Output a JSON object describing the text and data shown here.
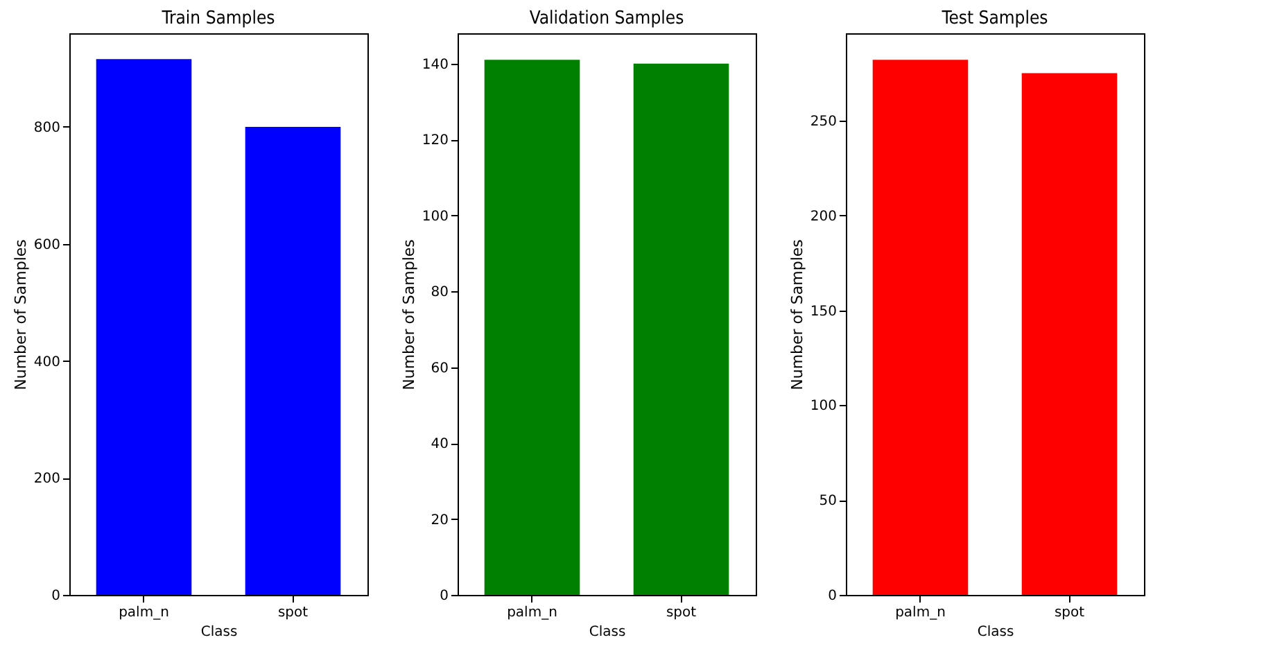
{
  "chart_data": [
    {
      "type": "bar",
      "title": "Train Samples",
      "xlabel": "Class",
      "ylabel": "Number of Samples",
      "categories": [
        "palm_n",
        "spot"
      ],
      "values": [
        916,
        800
      ],
      "color": "#0000ff",
      "ylim": [
        0,
        960
      ],
      "yticks": [
        0,
        200,
        400,
        600,
        800
      ]
    },
    {
      "type": "bar",
      "title": "Validation Samples",
      "xlabel": "Class",
      "ylabel": "Number of Samples",
      "categories": [
        "palm_n",
        "spot"
      ],
      "values": [
        141,
        140
      ],
      "color": "#008000",
      "ylim": [
        0,
        148
      ],
      "yticks": [
        0,
        20,
        40,
        60,
        80,
        100,
        120,
        140
      ]
    },
    {
      "type": "bar",
      "title": "Test Samples",
      "xlabel": "Class",
      "ylabel": "Number of Samples",
      "categories": [
        "palm_n",
        "spot"
      ],
      "values": [
        282,
        275
      ],
      "color": "#ff0000",
      "ylim": [
        0,
        296
      ],
      "yticks": [
        0,
        50,
        100,
        150,
        200,
        250
      ]
    }
  ]
}
